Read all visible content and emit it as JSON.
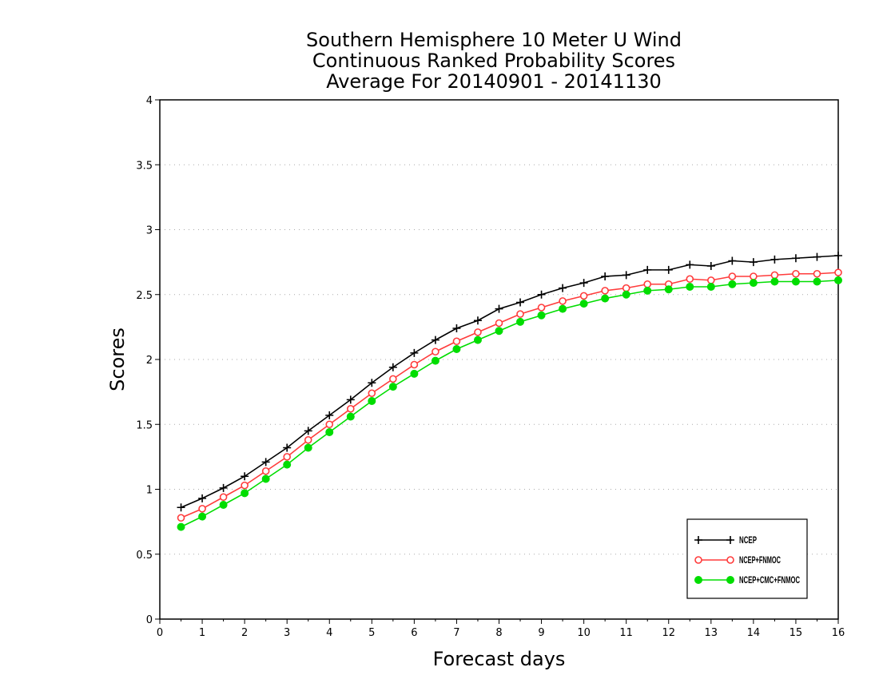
{
  "chart_data": {
    "type": "line",
    "title": [
      "Southern Hemisphere 10 Meter U Wind",
      "Continuous Ranked Probability Scores",
      "Average For 20140901 - 20141130"
    ],
    "xlabel": "Forecast days",
    "ylabel": "Scores",
    "xlim": [
      0,
      16
    ],
    "ylim": [
      0,
      4
    ],
    "xticks": [
      "0",
      "1",
      "2",
      "3",
      "4",
      "5",
      "6",
      "7",
      "8",
      "9",
      "10",
      "11",
      "12",
      "13",
      "14",
      "15",
      "16"
    ],
    "yticks": [
      "0",
      "0.5",
      "1",
      "1.5",
      "2",
      "2.5",
      "3",
      "3.5",
      "4"
    ],
    "grid": "horizontal dotted",
    "legend_position": "bottom-right",
    "x": [
      0.5,
      1,
      1.5,
      2,
      2.5,
      3,
      3.5,
      4,
      4.5,
      5,
      5.5,
      6,
      6.5,
      7,
      7.5,
      8,
      8.5,
      9,
      9.5,
      10,
      10.5,
      11,
      11.5,
      12,
      12.5,
      13,
      13.5,
      14,
      14.5,
      15,
      15.5,
      16
    ],
    "series": [
      {
        "name": "NCEP",
        "color": "#000000",
        "marker": "plus",
        "values": [
          0.86,
          0.93,
          1.01,
          1.1,
          1.21,
          1.32,
          1.45,
          1.57,
          1.69,
          1.82,
          1.94,
          2.05,
          2.15,
          2.24,
          2.3,
          2.39,
          2.44,
          2.5,
          2.55,
          2.59,
          2.64,
          2.65,
          2.69,
          2.69,
          2.73,
          2.72,
          2.76,
          2.75,
          2.77,
          2.78,
          2.79,
          2.8
        ]
      },
      {
        "name": "NCEP+FNMOC",
        "color": "#ff3b3b",
        "marker": "open-circle",
        "values": [
          0.78,
          0.85,
          0.94,
          1.03,
          1.14,
          1.25,
          1.38,
          1.5,
          1.62,
          1.74,
          1.85,
          1.96,
          2.06,
          2.14,
          2.21,
          2.28,
          2.35,
          2.4,
          2.45,
          2.49,
          2.53,
          2.55,
          2.58,
          2.58,
          2.62,
          2.61,
          2.64,
          2.64,
          2.65,
          2.66,
          2.66,
          2.67
        ]
      },
      {
        "name": "NCEP+CMC+FNMOC",
        "color": "#00dd00",
        "marker": "filled-circle",
        "values": [
          0.71,
          0.79,
          0.88,
          0.97,
          1.08,
          1.19,
          1.32,
          1.44,
          1.56,
          1.68,
          1.79,
          1.89,
          1.99,
          2.08,
          2.15,
          2.22,
          2.29,
          2.34,
          2.39,
          2.43,
          2.47,
          2.5,
          2.53,
          2.54,
          2.56,
          2.56,
          2.58,
          2.59,
          2.6,
          2.6,
          2.6,
          2.61
        ]
      }
    ]
  }
}
